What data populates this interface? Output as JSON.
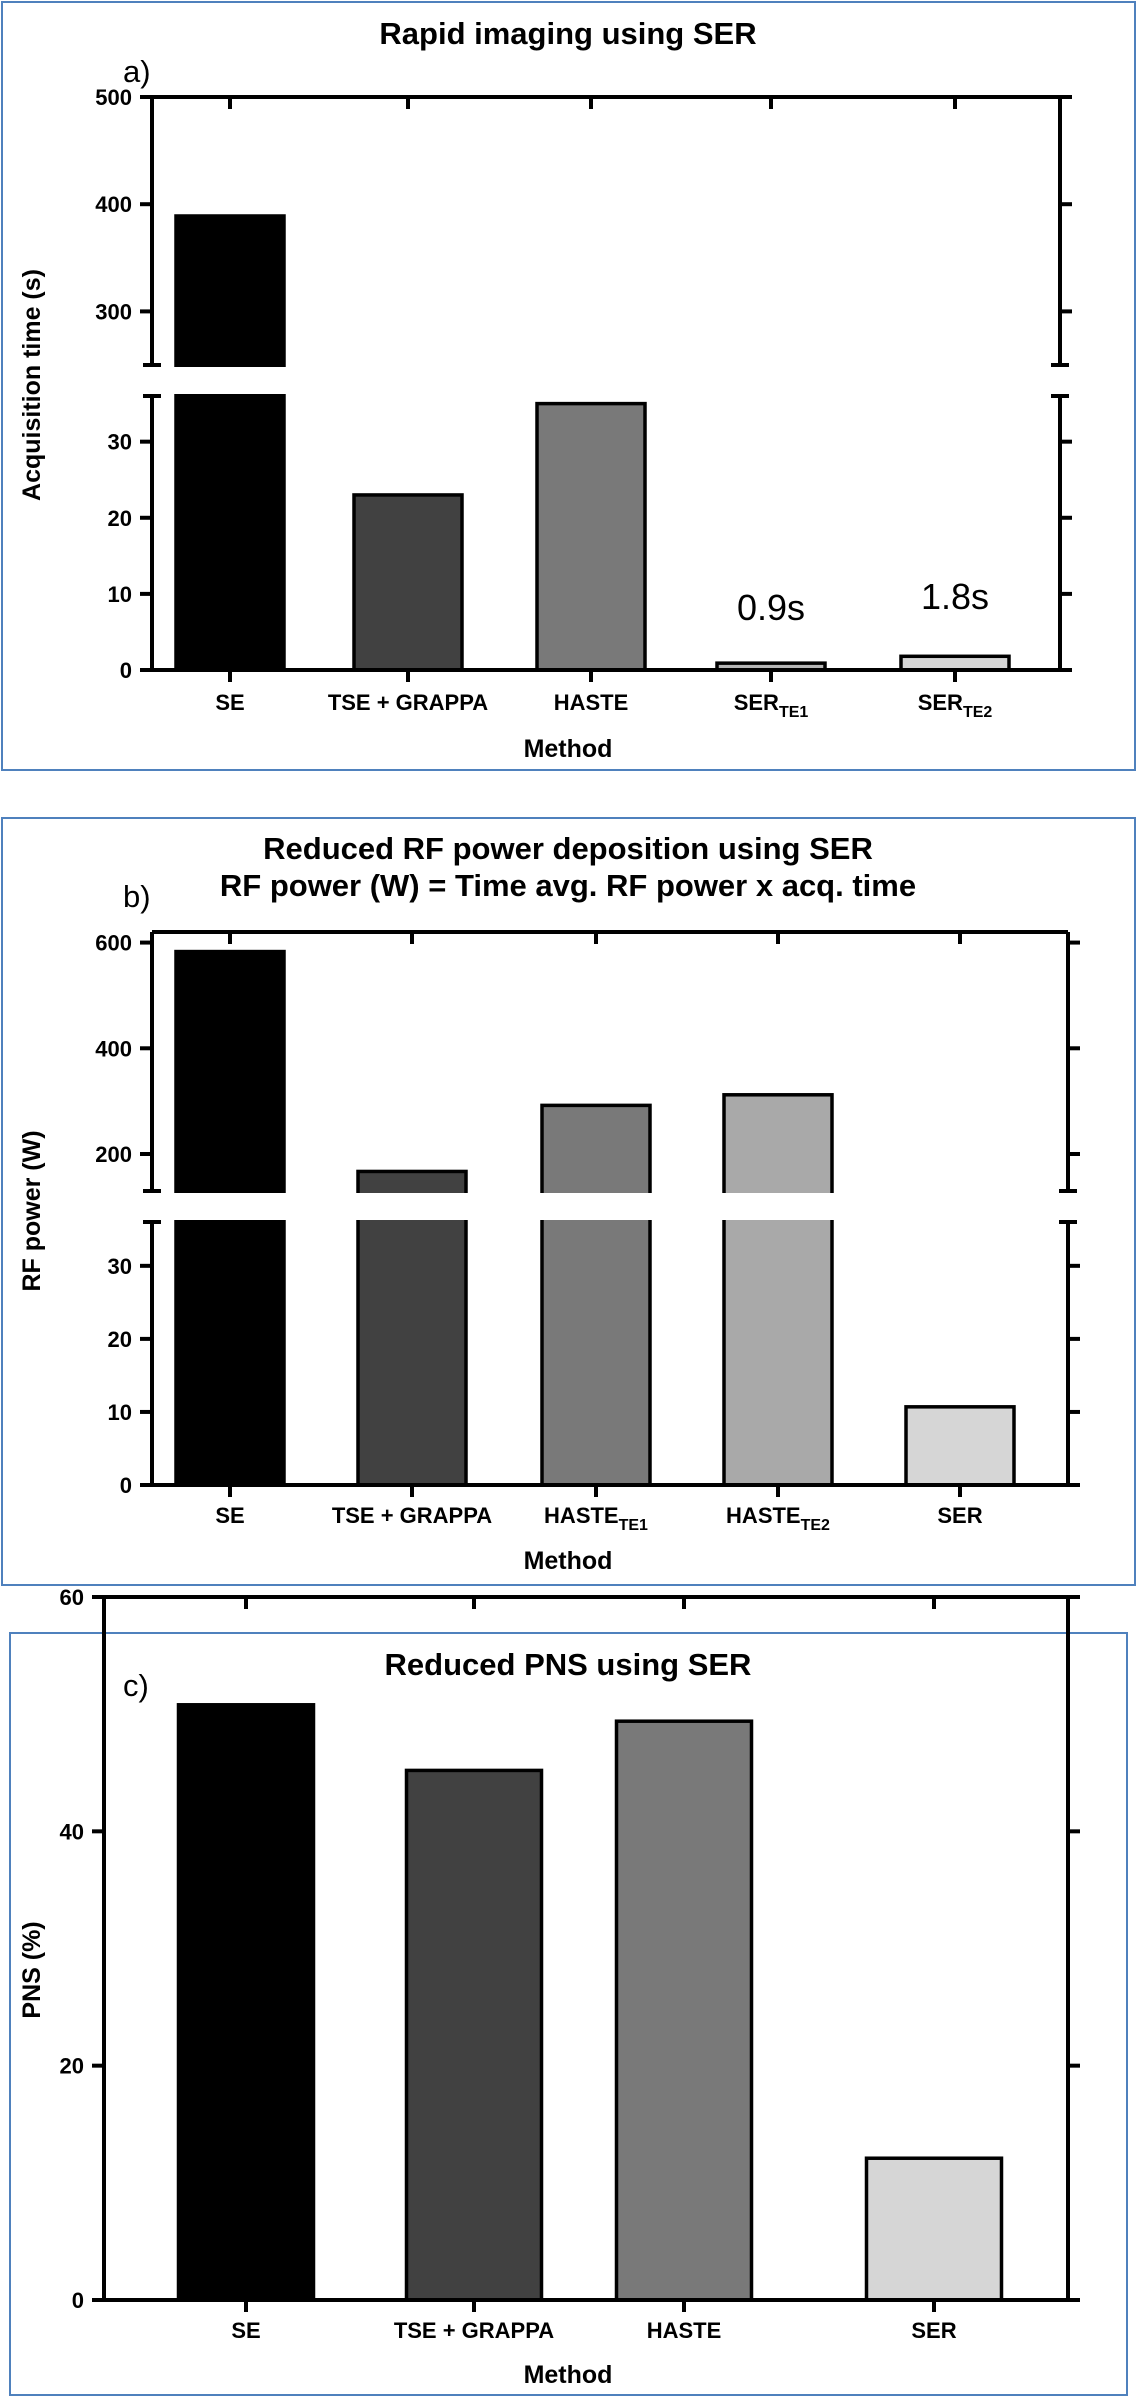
{
  "chart_data": [
    {
      "type": "bar",
      "panel_label": "a)",
      "title": "Rapid imaging using SER",
      "xlabel": "Method",
      "ylabel": "Acquisition time (s)",
      "categories": [
        {
          "text": "SE",
          "sub": ""
        },
        {
          "text": "TSE + GRAPPA",
          "sub": ""
        },
        {
          "text": "HASTE",
          "sub": ""
        },
        {
          "text": "SER",
          "sub": "TE1"
        },
        {
          "text": "SER",
          "sub": "TE2"
        }
      ],
      "values": [
        389,
        23,
        35,
        0.9,
        1.8
      ],
      "colors": [
        "#000000",
        "#414141",
        "#797979",
        "#b5b5b5",
        "#d6d6d6"
      ],
      "annotations": [
        {
          "index": 3,
          "text": "0.9s"
        },
        {
          "index": 4,
          "text": "1.8s"
        }
      ],
      "y_axis_break": {
        "lower_range": [
          0,
          36
        ],
        "lower_ticks": [
          0,
          10,
          20,
          30
        ],
        "upper_range": [
          250,
          500
        ],
        "upper_ticks": [
          300,
          400,
          500
        ]
      }
    },
    {
      "type": "bar",
      "panel_label": "b)",
      "title": "Reduced RF power deposition using SER",
      "subtitle": "RF power (W) = Time avg. RF power x acq. time",
      "xlabel": "Method",
      "ylabel": "RF power (W)",
      "categories": [
        {
          "text": "SE",
          "sub": ""
        },
        {
          "text": "TSE + GRAPPA",
          "sub": ""
        },
        {
          "text": "HASTE",
          "sub": "TE1"
        },
        {
          "text": "HASTE",
          "sub": "TE2"
        },
        {
          "text": "SER",
          "sub": ""
        }
      ],
      "values": [
        583,
        167,
        292,
        312,
        10.7
      ],
      "colors": [
        "#000000",
        "#414141",
        "#797979",
        "#a9a9a9",
        "#d6d6d6"
      ],
      "annotations": [],
      "y_axis_break": {
        "lower_range": [
          0,
          36
        ],
        "lower_ticks": [
          0,
          10,
          20,
          30
        ],
        "upper_range": [
          130,
          620
        ],
        "upper_ticks": [
          200,
          400,
          600
        ]
      }
    },
    {
      "type": "bar",
      "panel_label": "c)",
      "title": "Reduced PNS using SER",
      "xlabel": "Method",
      "ylabel": "PNS (%)",
      "categories": [
        {
          "text": "SE",
          "sub": ""
        },
        {
          "text": "TSE + GRAPPA",
          "sub": ""
        },
        {
          "text": "HASTE",
          "sub": ""
        },
        {
          "text": "SER",
          "sub": ""
        }
      ],
      "values": [
        50.8,
        45.2,
        49.4,
        12.1
      ],
      "colors": [
        "#000000",
        "#414141",
        "#797979",
        "#d6d6d6"
      ],
      "annotations": [],
      "ylim": [
        0,
        60
      ],
      "yticks": [
        0,
        20,
        40,
        60
      ]
    }
  ]
}
